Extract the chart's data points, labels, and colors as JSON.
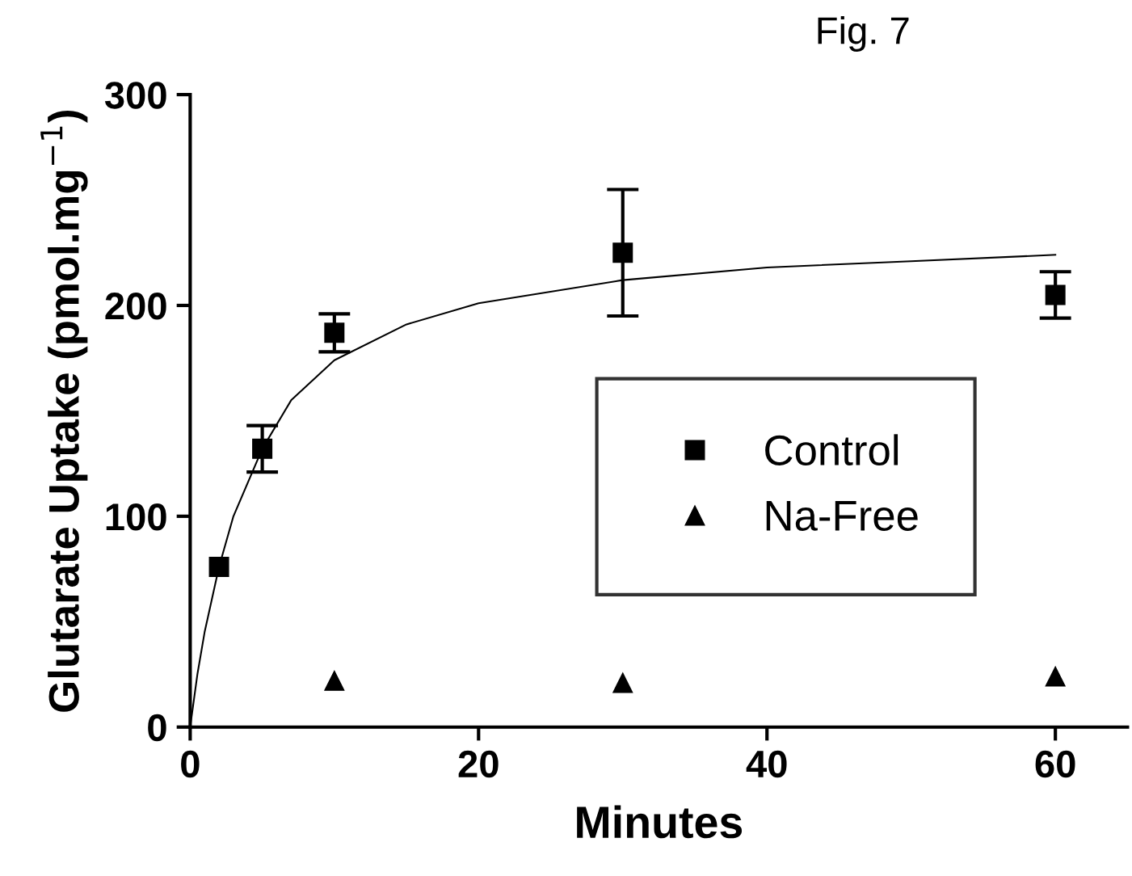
{
  "chart_data": {
    "type": "scatter",
    "title": "Fig. 7",
    "xlabel": "Minutes",
    "ylabel": "Glutarate Uptake (pmol.mg$^{−1}$)",
    "xlim": [
      0,
      65
    ],
    "ylim": [
      0,
      300
    ],
    "xticks": [
      0,
      20,
      40,
      60
    ],
    "yticks": [
      0,
      100,
      200,
      300
    ],
    "grid": false,
    "legend": "center right",
    "series": [
      {
        "name": "Control",
        "marker": "square",
        "color": "#000000",
        "x": [
          2,
          5,
          10,
          30,
          60
        ],
        "values": [
          76,
          132,
          187,
          225,
          205
        ],
        "errors": [
          null,
          11,
          9,
          30,
          11
        ]
      },
      {
        "name": "Na-Free",
        "marker": "triangle",
        "color": "#000000",
        "x": [
          10,
          30,
          60
        ],
        "values": [
          22,
          21,
          24
        ]
      },
      {
        "type": "line",
        "marker": "none",
        "color": "#000000",
        "x": [
          0,
          0.5,
          1,
          2,
          3,
          5,
          7,
          10,
          15,
          20,
          30,
          40,
          50,
          60
        ],
        "values": [
          0,
          25,
          45,
          76,
          100,
          132,
          155,
          174,
          191,
          201,
          212,
          218,
          221,
          224
        ]
      }
    ]
  }
}
